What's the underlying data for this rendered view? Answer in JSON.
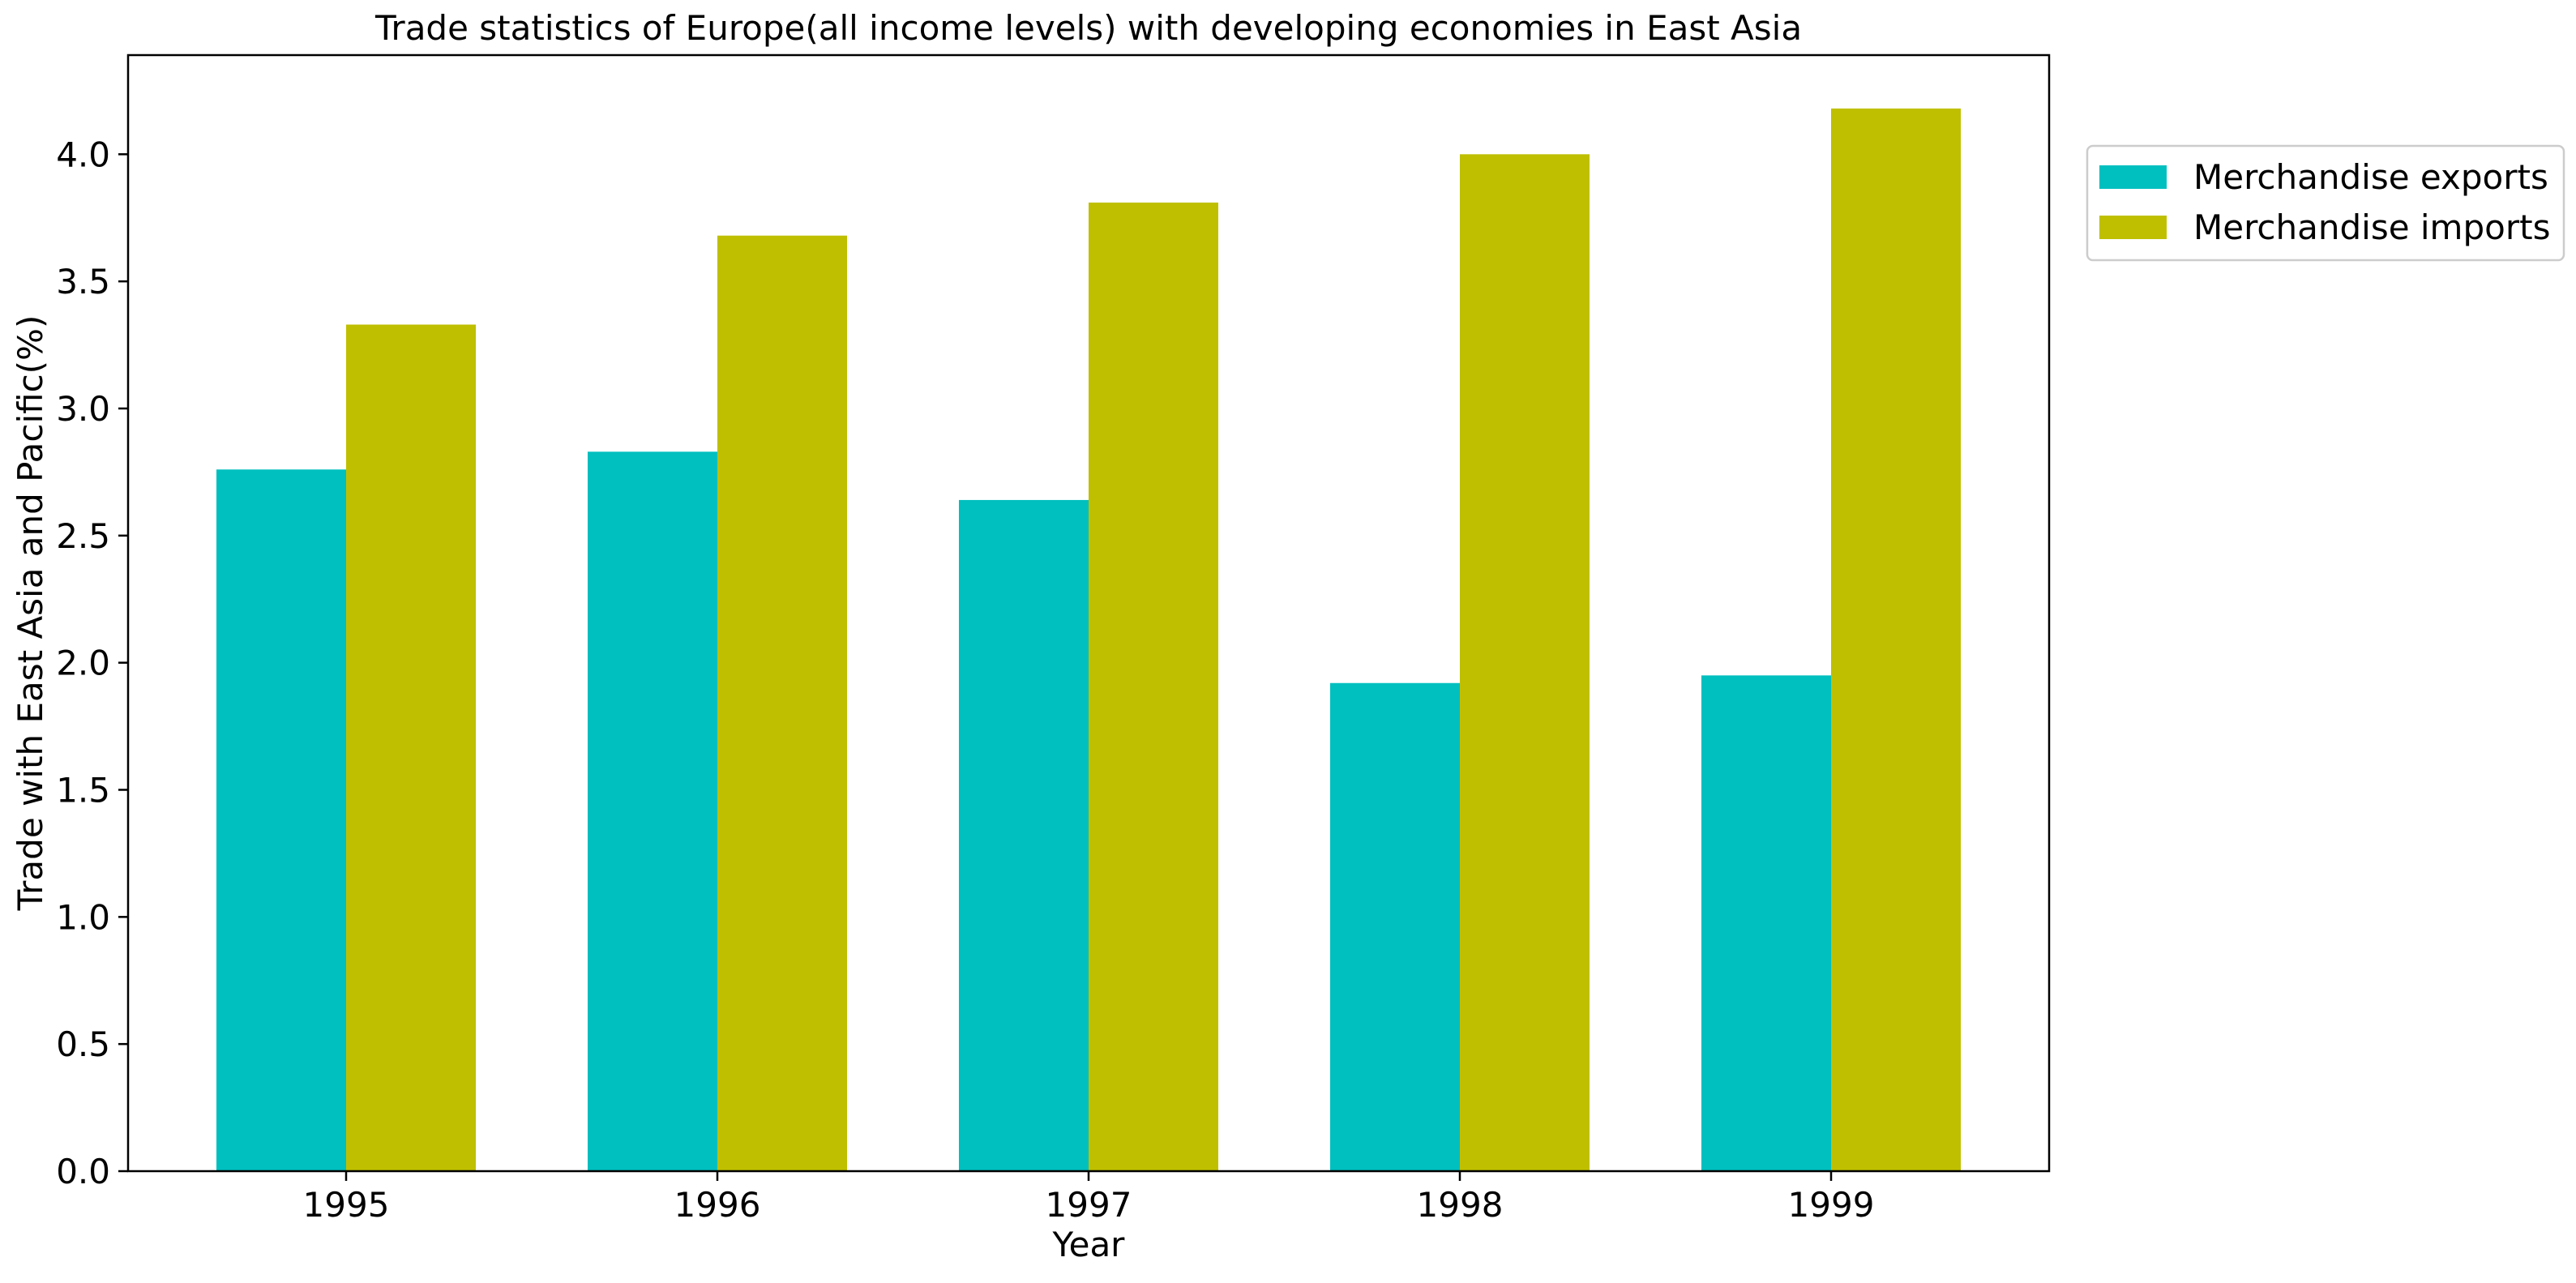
{
  "chart_data": {
    "type": "bar",
    "title": "Trade statistics of Europe(all income levels) with developing economies in East Asia",
    "xlabel": "Year",
    "ylabel": "Trade with East Asia and Pacific(%)",
    "categories": [
      "1995",
      "1996",
      "1997",
      "1998",
      "1999"
    ],
    "series": [
      {
        "name": "Merchandise exports",
        "color": "#00bfbf",
        "values": [
          2.76,
          2.83,
          2.64,
          1.92,
          1.95
        ]
      },
      {
        "name": "Merchandise imports",
        "color": "#bfbf00",
        "values": [
          3.33,
          3.68,
          3.81,
          4.0,
          4.18
        ]
      }
    ],
    "ylim": [
      0,
      4.39
    ],
    "yticks": [
      "0.0",
      "0.5",
      "1.0",
      "1.5",
      "2.0",
      "2.5",
      "3.0",
      "3.5",
      "4.0"
    ],
    "grid": false,
    "legend_position": "outside-top-right"
  }
}
